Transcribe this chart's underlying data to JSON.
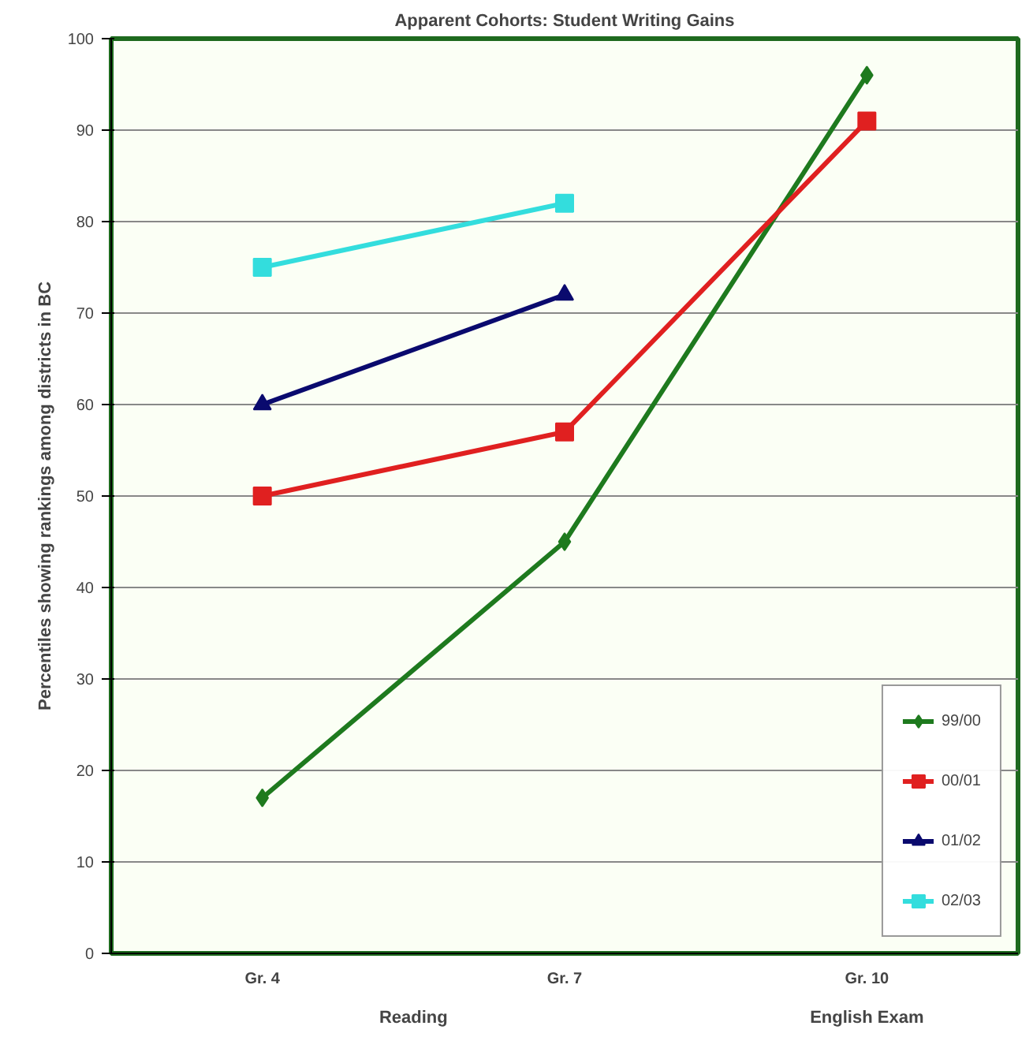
{
  "chart_data": {
    "type": "line",
    "title": "Apparent Cohorts: Student Writing Gains",
    "ylabel": "Percentiles showing rankings among districts in BC",
    "categories": [
      "Gr. 4",
      "Gr. 7",
      "Gr. 10"
    ],
    "annotations": [
      "Reading",
      "English Exam"
    ],
    "ylim": [
      0,
      100
    ],
    "yticks": [
      0,
      10,
      20,
      30,
      40,
      50,
      60,
      70,
      80,
      90,
      100
    ],
    "grid": "y",
    "legend": "bottom right",
    "series": [
      {
        "name": "99/00",
        "color": "#1e7a1e",
        "marker": "diamond",
        "values": [
          17,
          45,
          96
        ]
      },
      {
        "name": "00/01",
        "color": "#e02020",
        "marker": "square",
        "values": [
          50,
          57,
          91
        ]
      },
      {
        "name": "01/02",
        "color": "#0a0a6e",
        "marker": "triangle",
        "values": [
          60,
          72,
          null
        ]
      },
      {
        "name": "02/03",
        "color": "#33dddd",
        "marker": "square",
        "values": [
          75,
          82,
          null
        ]
      }
    ]
  }
}
